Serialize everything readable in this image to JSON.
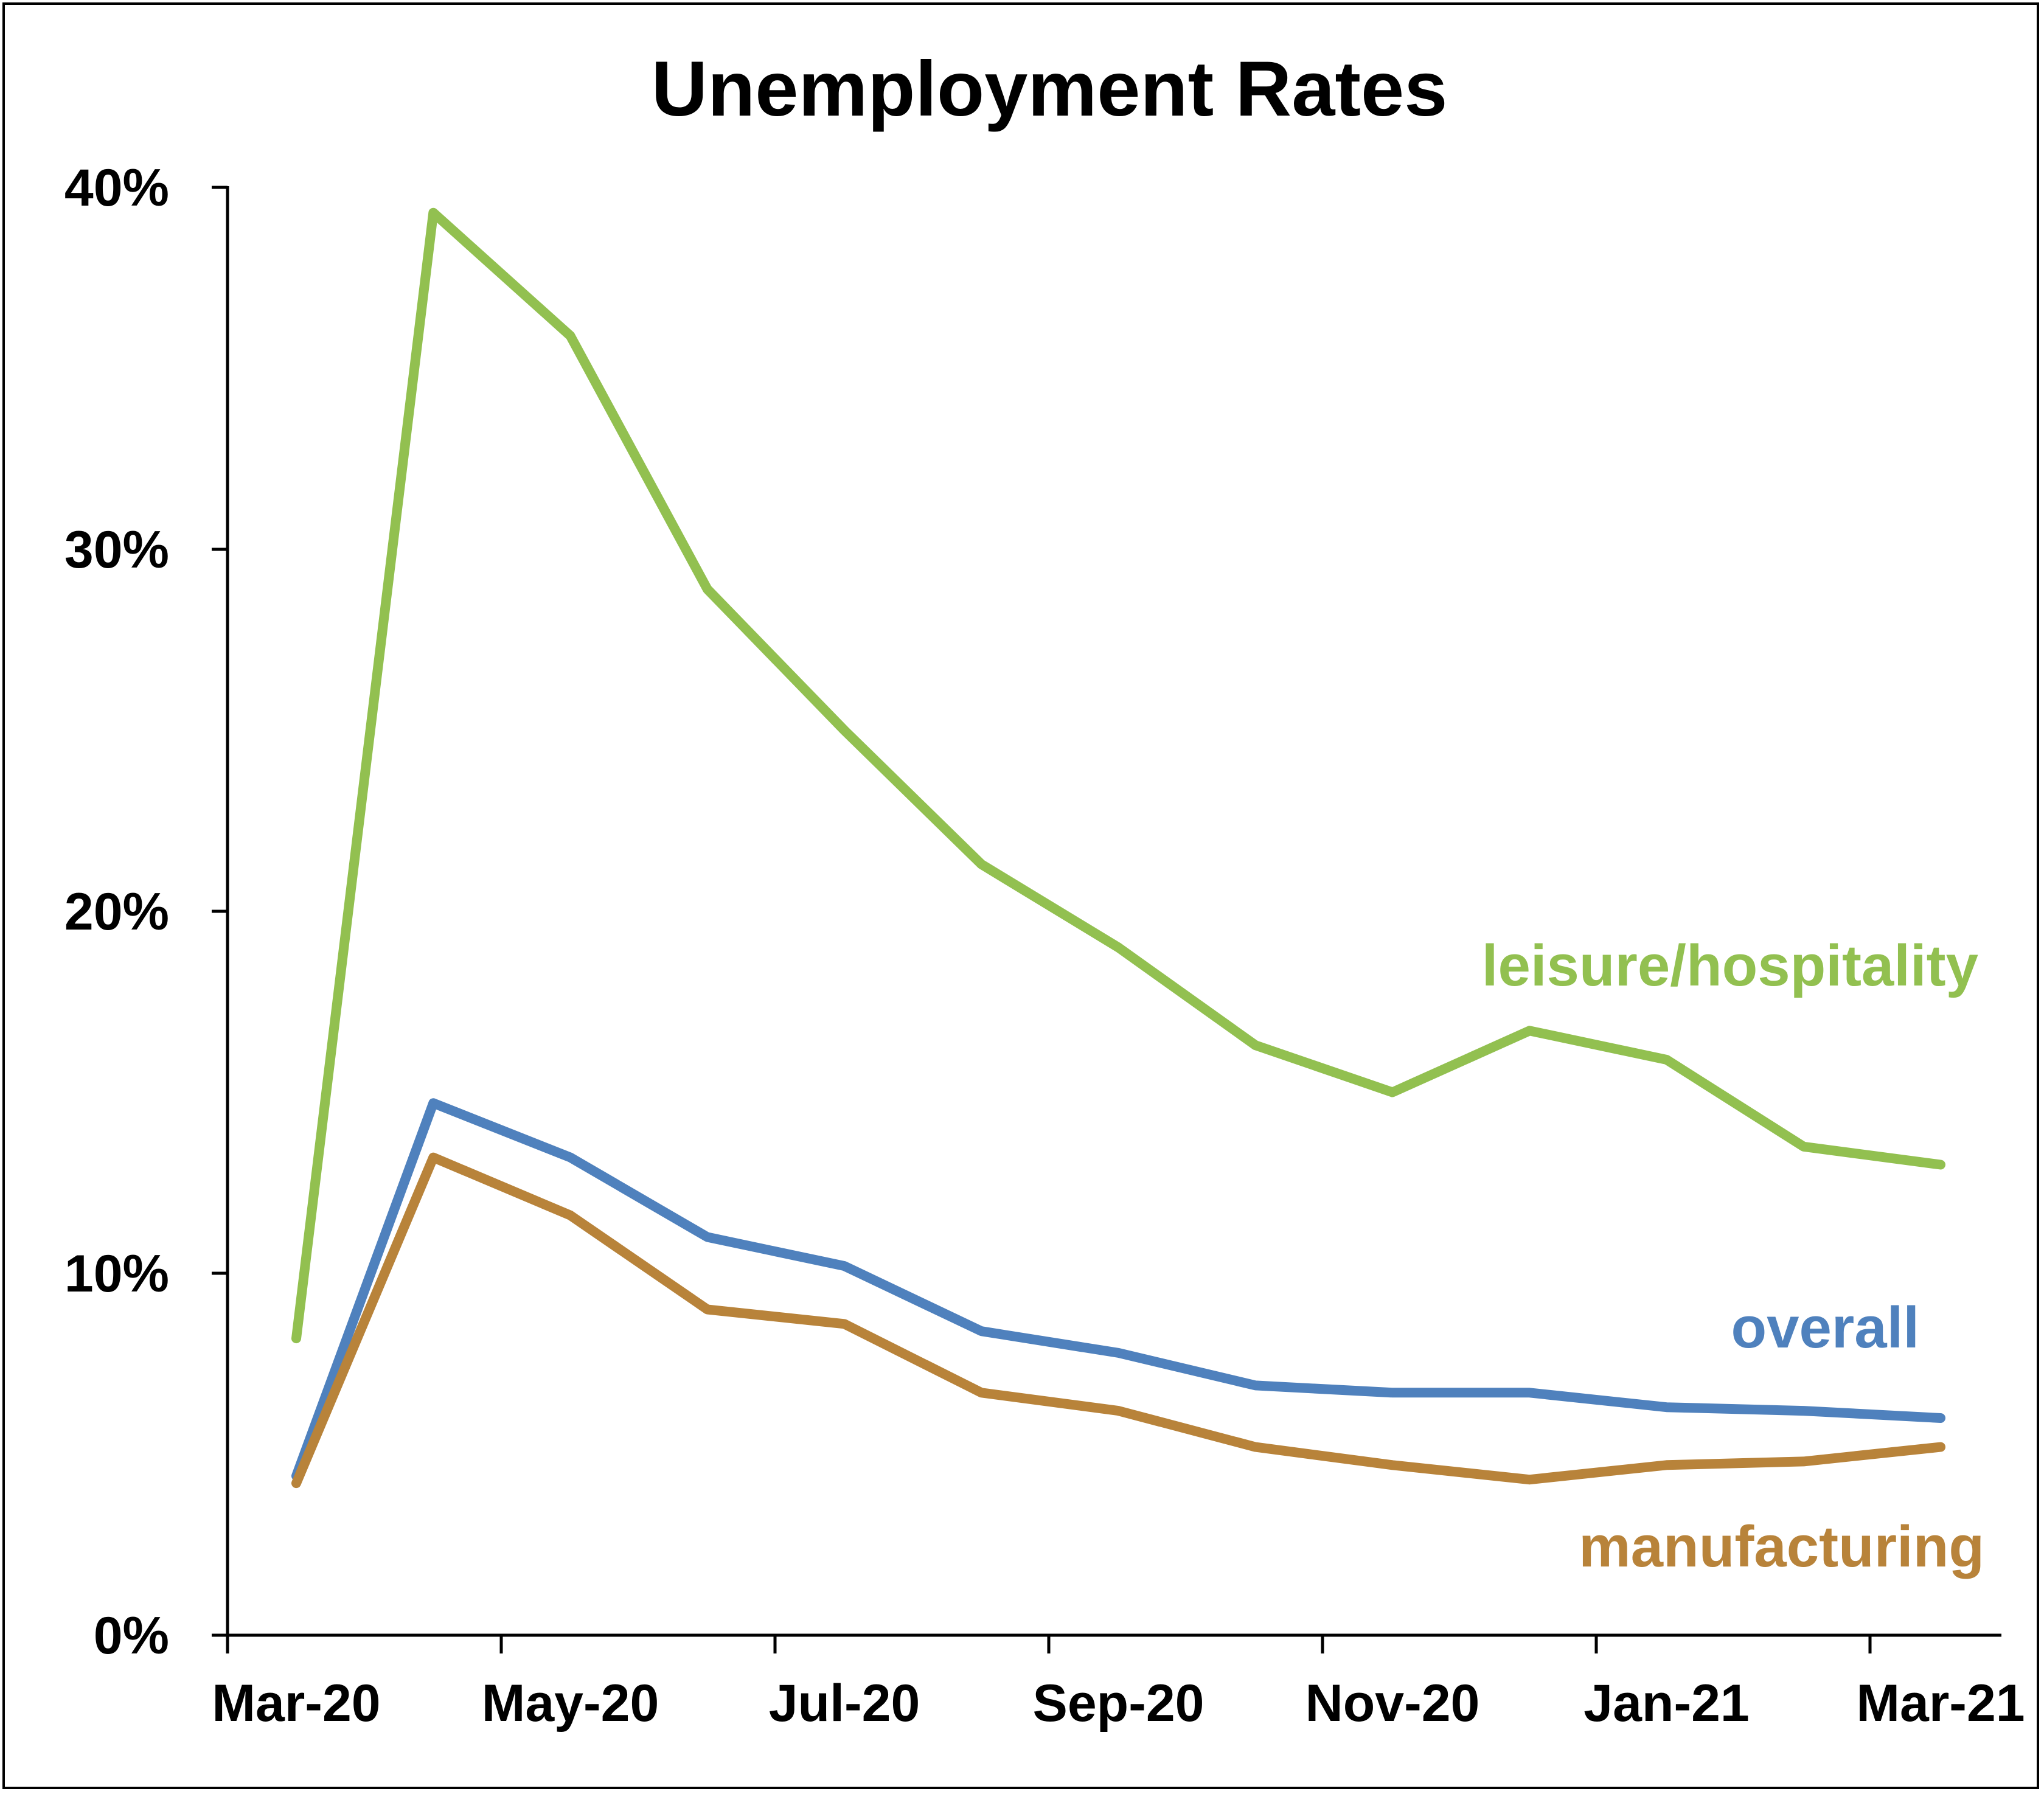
{
  "chart_data": {
    "type": "line",
    "title": "Unemployment Rates",
    "xlabel": "",
    "ylabel": "",
    "x": [
      "Mar-20",
      "Apr-20",
      "May-20",
      "Jun-20",
      "Jul-20",
      "Aug-20",
      "Sep-20",
      "Oct-20",
      "Nov-20",
      "Dec-20",
      "Jan-21",
      "Feb-21",
      "Mar-21"
    ],
    "x_tick_labels": [
      "Mar-20",
      "May-20",
      "Jul-20",
      "Sep-20",
      "Nov-20",
      "Jan-21",
      "Mar-21"
    ],
    "y_tick_labels": [
      "0%",
      "10%",
      "20%",
      "30%",
      "40%"
    ],
    "y_ticks": [
      0,
      10,
      20,
      30,
      40
    ],
    "ylim": [
      0,
      40
    ],
    "grid": false,
    "legend": "inline labels near line ends",
    "series": [
      {
        "name": "leisure/hospitality",
        "color": "#92c050",
        "values": [
          8.2,
          39.3,
          35.9,
          28.9,
          25.0,
          21.3,
          19.0,
          16.3,
          15.0,
          16.7,
          15.9,
          13.5,
          13.0
        ]
      },
      {
        "name": "overall",
        "color": "#4f81bd",
        "values": [
          4.4,
          14.7,
          13.2,
          11.0,
          10.2,
          8.4,
          7.8,
          6.9,
          6.7,
          6.7,
          6.3,
          6.2,
          6.0
        ]
      },
      {
        "name": "manufacturing",
        "color": "#b8833a",
        "values": [
          4.2,
          13.2,
          11.6,
          9.0,
          8.6,
          6.7,
          6.2,
          5.2,
          4.7,
          4.3,
          4.7,
          4.8,
          5.2
        ]
      }
    ]
  }
}
